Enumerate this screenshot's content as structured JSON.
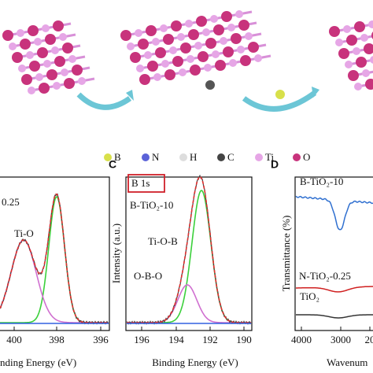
{
  "legend": [
    "B",
    "N",
    "H",
    "C",
    "Ti",
    "O"
  ],
  "panel_b": {
    "sample": "0.25",
    "peak": "Ti-O",
    "xticks": [
      "400",
      "398",
      "396"
    ],
    "xlabel": "nding Energy (eV)"
  },
  "panel_c": {
    "letter": "C",
    "tag": "B 1s",
    "sample": "B-TiO₂-10",
    "peaks": [
      "Ti-O-B",
      "O-B-O"
    ],
    "ylabel": "Intensity (a.u.)",
    "xticks": [
      "196",
      "194",
      "192",
      "190"
    ],
    "xlabel": "Binding Energy (eV)"
  },
  "panel_d": {
    "letter": "D",
    "samples": [
      "B-TiO₂-10",
      "N-TiO₂-0.25",
      "TiO₂"
    ],
    "ylabel": "Transmittance (%)",
    "xticks": [
      "4000",
      "3000",
      "20"
    ],
    "xlabel": "Wavenum"
  }
}
